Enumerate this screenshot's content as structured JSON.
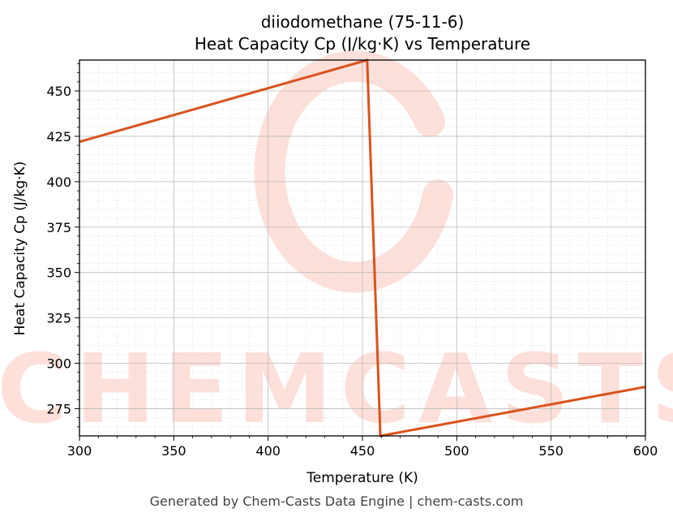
{
  "chart_data": {
    "type": "line",
    "title": "diiodomethane (75-11-6)",
    "subtitle": "Heat Capacity Cp (J/kg·K) vs Temperature",
    "xlabel": "Temperature (K)",
    "ylabel": "Heat Capacity Cp (J/kg·K)",
    "xlim": [
      300,
      600
    ],
    "ylim": [
      260,
      467
    ],
    "xticks": [
      300,
      350,
      400,
      450,
      500,
      550,
      600
    ],
    "yticks": [
      275,
      300,
      325,
      350,
      375,
      400,
      425,
      450
    ],
    "grid": true,
    "legend": "none",
    "series": [
      {
        "color": "#d9531e",
        "points": [
          {
            "x": 300,
            "y": 422
          },
          {
            "x": 452.5,
            "y": 467
          },
          {
            "x": 459.5,
            "y": 260
          },
          {
            "x": 600,
            "y": 287
          }
        ]
      }
    ]
  },
  "watermark": {
    "text": "CHEMCASTS",
    "color": "#fde0da"
  },
  "footer": {
    "text": "Generated by Chem-Casts Data Engine | chem-casts.com"
  }
}
